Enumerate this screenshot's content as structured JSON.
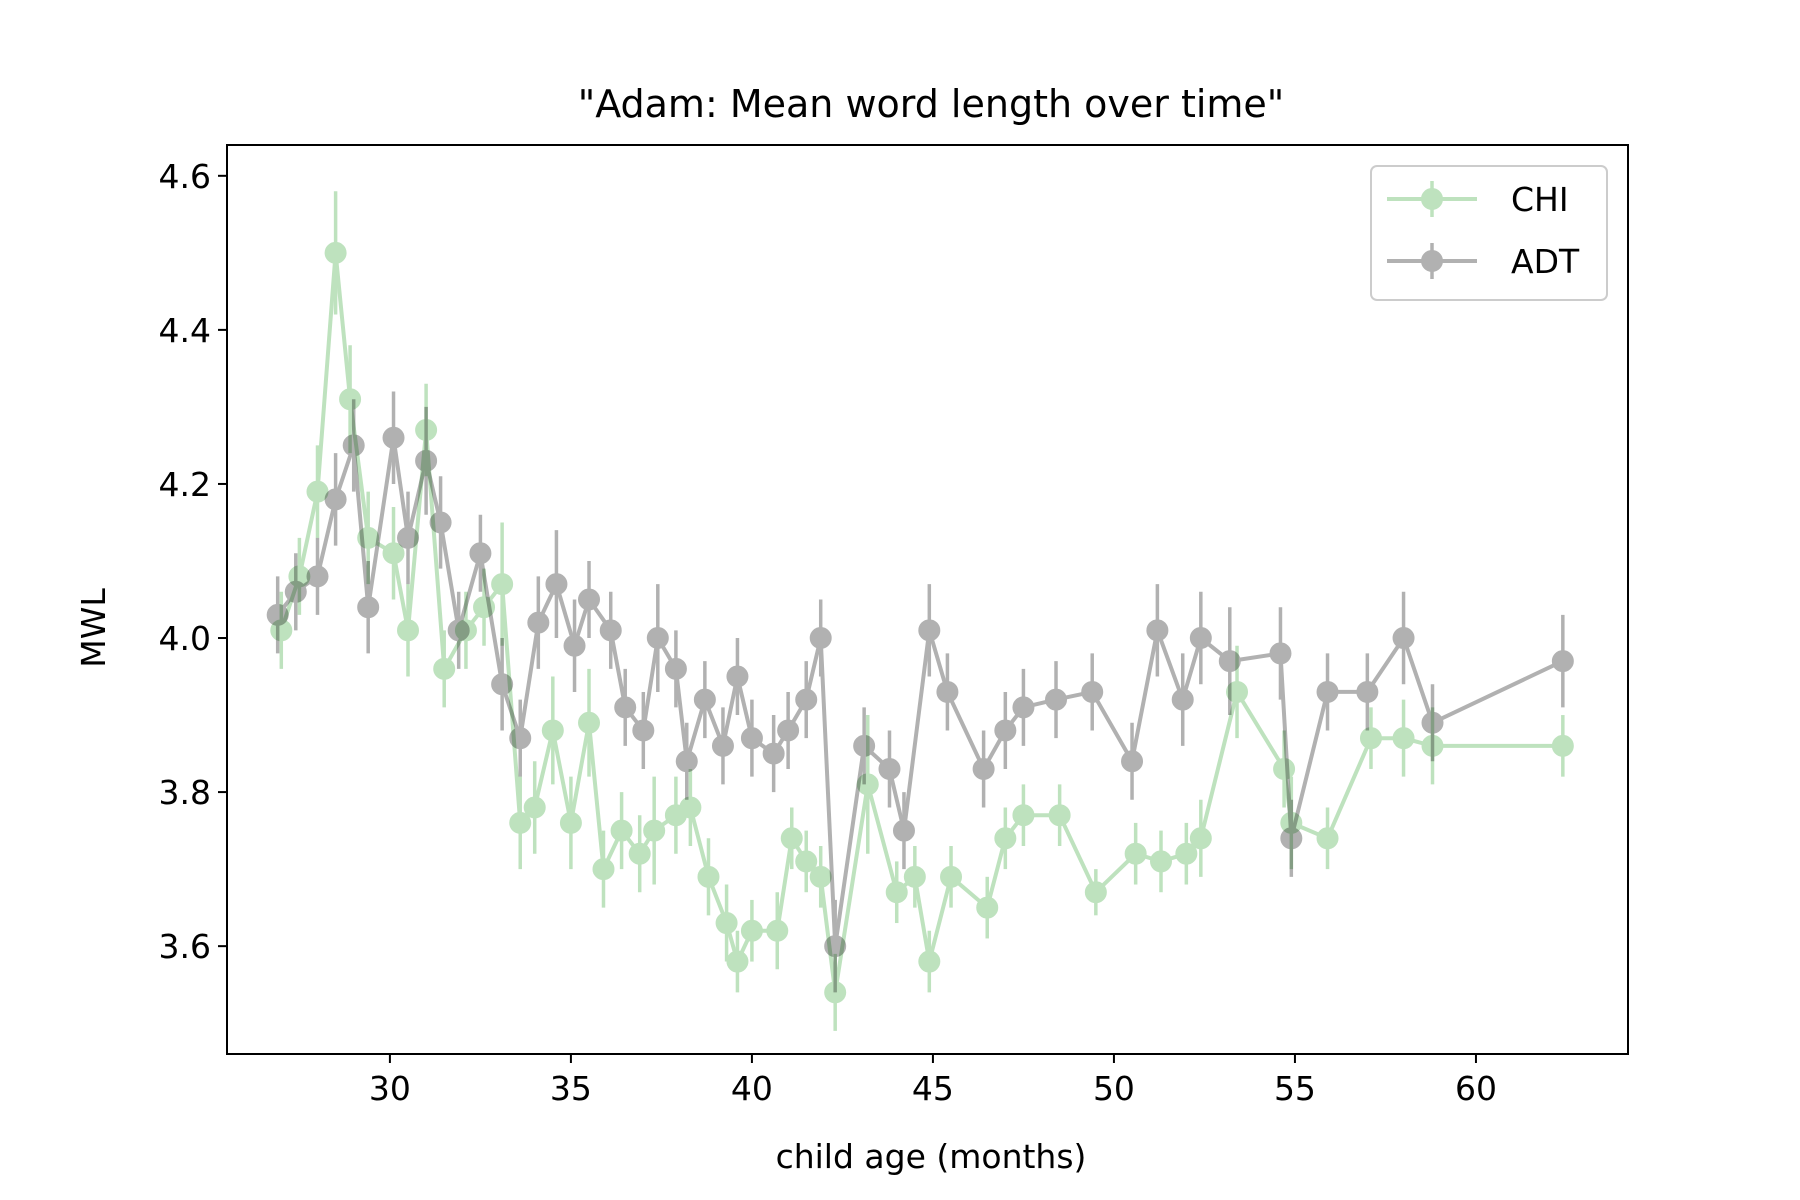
{
  "chart_data": {
    "type": "line",
    "title": "\"Adam: Mean word length over time\"",
    "xlabel": "child age (months)",
    "ylabel": "MWL",
    "xlim": [
      25.5,
      64.2
    ],
    "ylim": [
      3.46,
      4.64
    ],
    "xticks": [
      30,
      35,
      40,
      45,
      50,
      55,
      60
    ],
    "yticks": [
      3.6,
      3.8,
      4.0,
      4.2,
      4.4,
      4.6
    ],
    "grid": false,
    "legend_position": "top-right",
    "series": [
      {
        "name": "CHI",
        "color": "#2ca02c",
        "x": [
          27.0,
          27.5,
          28.0,
          28.5,
          28.9,
          29.4,
          30.1,
          30.5,
          31.0,
          31.5,
          32.1,
          32.6,
          33.1,
          33.6,
          34.0,
          34.5,
          35.0,
          35.5,
          35.9,
          36.4,
          36.9,
          37.3,
          37.9,
          38.3,
          38.8,
          39.3,
          39.6,
          40.0,
          40.7,
          41.1,
          41.5,
          41.9,
          42.3,
          43.2,
          44.0,
          44.5,
          44.9,
          45.5,
          46.5,
          47.0,
          47.5,
          48.5,
          49.5,
          50.6,
          51.3,
          52.0,
          52.4,
          53.4,
          54.7,
          54.9,
          55.9,
          57.1,
          58.0,
          58.8,
          62.4
        ],
        "y": [
          4.01,
          4.08,
          4.19,
          4.5,
          4.31,
          4.13,
          4.11,
          4.01,
          4.27,
          3.96,
          4.01,
          4.04,
          4.07,
          3.76,
          3.78,
          3.88,
          3.76,
          3.89,
          3.7,
          3.75,
          3.72,
          3.75,
          3.77,
          3.78,
          3.69,
          3.63,
          3.58,
          3.62,
          3.62,
          3.74,
          3.71,
          3.69,
          3.54,
          3.81,
          3.67,
          3.69,
          3.58,
          3.69,
          3.65,
          3.74,
          3.77,
          3.77,
          3.67,
          3.72,
          3.71,
          3.72,
          3.74,
          3.93,
          3.83,
          3.76,
          3.74,
          3.87,
          3.87,
          3.86,
          3.86
        ],
        "err": [
          0.05,
          0.05,
          0.06,
          0.08,
          0.07,
          0.06,
          0.06,
          0.06,
          0.06,
          0.05,
          0.05,
          0.05,
          0.08,
          0.06,
          0.06,
          0.07,
          0.06,
          0.07,
          0.05,
          0.05,
          0.05,
          0.07,
          0.05,
          0.05,
          0.05,
          0.05,
          0.04,
          0.04,
          0.05,
          0.04,
          0.04,
          0.04,
          0.05,
          0.09,
          0.04,
          0.04,
          0.04,
          0.04,
          0.04,
          0.04,
          0.04,
          0.04,
          0.03,
          0.04,
          0.04,
          0.04,
          0.05,
          0.06,
          0.05,
          0.06,
          0.04,
          0.04,
          0.05,
          0.05,
          0.04
        ]
      },
      {
        "name": "ADT",
        "color": "#000000",
        "x": [
          26.9,
          27.4,
          28.0,
          28.5,
          29.0,
          29.4,
          30.1,
          30.5,
          31.0,
          31.4,
          31.9,
          32.5,
          33.1,
          33.6,
          34.1,
          34.6,
          35.1,
          35.5,
          36.1,
          36.5,
          37.0,
          37.4,
          37.9,
          38.2,
          38.7,
          39.2,
          39.6,
          40.0,
          40.6,
          41.0,
          41.5,
          41.9,
          42.3,
          43.1,
          43.8,
          44.2,
          44.9,
          45.4,
          46.4,
          47.0,
          47.5,
          48.4,
          49.4,
          50.5,
          51.2,
          51.9,
          52.4,
          53.2,
          54.6,
          54.9,
          55.9,
          57.0,
          58.0,
          58.8,
          62.4
        ],
        "y": [
          4.03,
          4.06,
          4.08,
          4.18,
          4.25,
          4.04,
          4.26,
          4.13,
          4.23,
          4.15,
          4.01,
          4.11,
          3.94,
          3.87,
          4.02,
          4.07,
          3.99,
          4.05,
          4.01,
          3.91,
          3.88,
          4.0,
          3.96,
          3.84,
          3.92,
          3.86,
          3.95,
          3.87,
          3.85,
          3.88,
          3.92,
          4.0,
          3.6,
          3.86,
          3.83,
          3.75,
          4.01,
          3.93,
          3.83,
          3.88,
          3.91,
          3.92,
          3.93,
          3.84,
          4.01,
          3.92,
          4.0,
          3.97,
          3.98,
          3.74,
          3.93,
          3.93,
          4.0,
          3.89,
          3.97
        ],
        "err": [
          0.05,
          0.05,
          0.05,
          0.06,
          0.06,
          0.06,
          0.06,
          0.06,
          0.07,
          0.06,
          0.05,
          0.05,
          0.06,
          0.05,
          0.06,
          0.07,
          0.06,
          0.05,
          0.05,
          0.05,
          0.05,
          0.07,
          0.05,
          0.05,
          0.05,
          0.05,
          0.05,
          0.05,
          0.05,
          0.05,
          0.05,
          0.05,
          0.06,
          0.05,
          0.05,
          0.05,
          0.06,
          0.05,
          0.05,
          0.05,
          0.05,
          0.05,
          0.05,
          0.05,
          0.06,
          0.06,
          0.06,
          0.07,
          0.06,
          0.05,
          0.05,
          0.05,
          0.06,
          0.05,
          0.06
        ]
      }
    ]
  }
}
